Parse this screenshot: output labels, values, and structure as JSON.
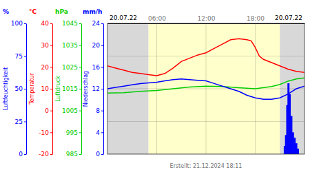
{
  "chart_data": {
    "type": "line",
    "title": "20.07.22",
    "subtitle": "20.07.22",
    "caption": "Erstellt: 21.12.2024 18:11",
    "xlim": [
      0,
      24
    ],
    "xticks": [
      {
        "value": 6,
        "label": "06:00"
      },
      {
        "value": 12,
        "label": "12:00"
      },
      {
        "value": 18,
        "label": "18:00"
      }
    ],
    "grid": true,
    "bands": [
      {
        "from": 0,
        "to": 5,
        "color": "#d8d8d8"
      },
      {
        "from": 5,
        "to": 21,
        "color": "#ffffcc"
      },
      {
        "from": 21,
        "to": 24,
        "color": "#d8d8d8"
      }
    ],
    "y_axes": [
      {
        "label": "Luftfeuchtigkeit",
        "unit": "%",
        "color": "blue",
        "lim": [
          0,
          100
        ],
        "ticks": [
          0,
          25,
          50,
          75,
          100
        ]
      },
      {
        "label": "Temperatur",
        "unit": "°C",
        "color": "red",
        "lim": [
          -20,
          40
        ],
        "ticks": [
          -20,
          -10,
          0,
          10,
          20,
          30,
          40
        ]
      },
      {
        "label": "Luftdruck",
        "unit": "hPa",
        "color": "#00cc00",
        "lim": [
          985,
          1045
        ],
        "ticks": [
          985,
          995,
          1005,
          1015,
          1025,
          1035,
          1045
        ]
      },
      {
        "label": "Niederschlag",
        "unit": "mm/h",
        "color": "blue",
        "lim": [
          0,
          24
        ],
        "ticks": [
          0,
          4,
          8,
          12,
          16,
          20,
          24
        ]
      }
    ],
    "series": [
      {
        "type": "line",
        "color": "red",
        "axis": "y2",
        "x": [
          0,
          1,
          2,
          3,
          4,
          5,
          6,
          7,
          8,
          9,
          10,
          11,
          12,
          13,
          14,
          15,
          16,
          17,
          17.5,
          18,
          18.5,
          19,
          20,
          21,
          22,
          23,
          24
        ],
        "values": [
          20.5,
          19.5,
          18.5,
          17.5,
          17.0,
          16.5,
          16.0,
          17.0,
          19.5,
          22.5,
          24.0,
          25.5,
          26.5,
          28.5,
          30.5,
          32.5,
          33.0,
          32.5,
          32.0,
          29.0,
          25.0,
          23.5,
          22.0,
          20.5,
          19.0,
          18.0,
          17.5
        ]
      },
      {
        "type": "line",
        "color": "#00cc00",
        "axis": "y3",
        "x": [
          0,
          2,
          4,
          6,
          8,
          10,
          12,
          14,
          16,
          18,
          20,
          21,
          22,
          23,
          24
        ],
        "values": [
          1013.0,
          1013.2,
          1013.8,
          1014.2,
          1015.0,
          1015.8,
          1016.2,
          1016.0,
          1015.5,
          1015.0,
          1016.0,
          1017.0,
          1018.5,
          1019.5,
          1020.0
        ]
      },
      {
        "type": "line",
        "color": "blue",
        "axis": "y",
        "x": [
          0,
          1,
          2,
          3,
          4,
          5,
          6,
          7,
          8,
          9,
          10,
          11,
          12,
          13,
          14,
          15,
          16,
          17,
          18,
          19,
          20,
          21,
          22,
          23,
          24
        ],
        "values": [
          50,
          51,
          52,
          53,
          54,
          54.5,
          55,
          56,
          57,
          57.5,
          57,
          56.5,
          56,
          54,
          52,
          50,
          48,
          45,
          43,
          42,
          42,
          43,
          46,
          50,
          52
        ]
      },
      {
        "type": "bar",
        "color": "blue",
        "axis": "y4",
        "x": [
          21.6,
          21.75,
          21.9,
          22.05,
          22.2,
          22.4,
          22.6,
          22.8,
          23.0,
          23.2
        ],
        "values": [
          1.5,
          3.5,
          9.0,
          13.0,
          11.0,
          7.0,
          4.0,
          3.0,
          2.0,
          1.0
        ]
      }
    ]
  }
}
